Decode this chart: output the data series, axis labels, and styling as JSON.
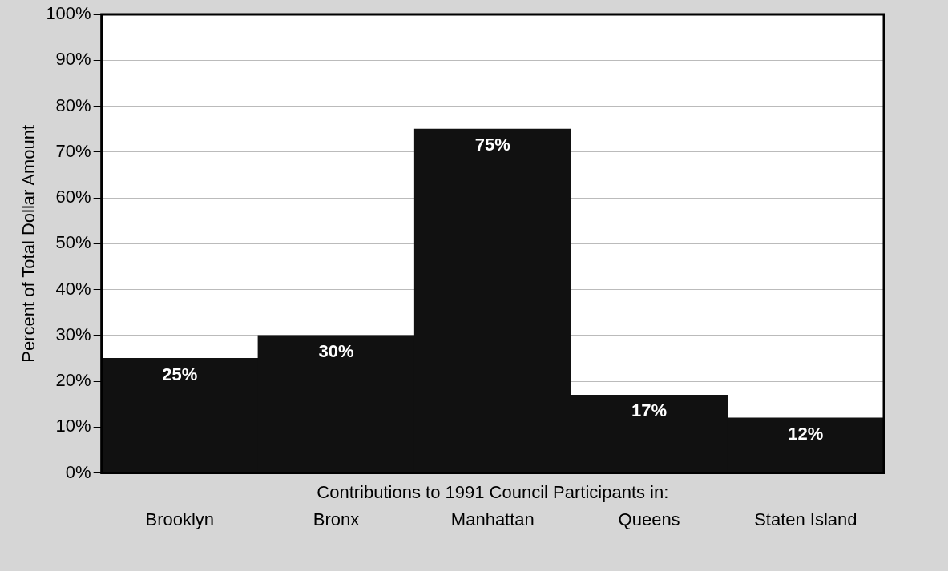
{
  "chart_data": {
    "type": "bar",
    "xlabel": "Contributions to 1991 Council Participants in:",
    "ylabel": "Percent of Total Dollar Amount",
    "categories": [
      "Brooklyn",
      "Bronx",
      "Manhattan",
      "Queens",
      "Staten Island"
    ],
    "values": [
      25,
      30,
      75,
      17,
      12
    ],
    "color": "#111111",
    "ylim": [
      0,
      100
    ],
    "yticks": [
      {
        "value": 0,
        "label": "0%"
      },
      {
        "value": 10,
        "label": "10%"
      },
      {
        "value": 20,
        "label": "20%"
      },
      {
        "value": 30,
        "label": "30%"
      },
      {
        "value": 40,
        "label": "40%"
      },
      {
        "value": 50,
        "label": "50%"
      },
      {
        "value": 60,
        "label": "60%"
      },
      {
        "value": 70,
        "label": "70%"
      },
      {
        "value": 80,
        "label": "80%"
      },
      {
        "value": 90,
        "label": "90%"
      },
      {
        "value": 100,
        "label": "100%"
      }
    ],
    "value_labels": [
      "25%",
      "30%",
      "75%",
      "17%",
      "12%"
    ],
    "grid": "y",
    "legend": false
  }
}
